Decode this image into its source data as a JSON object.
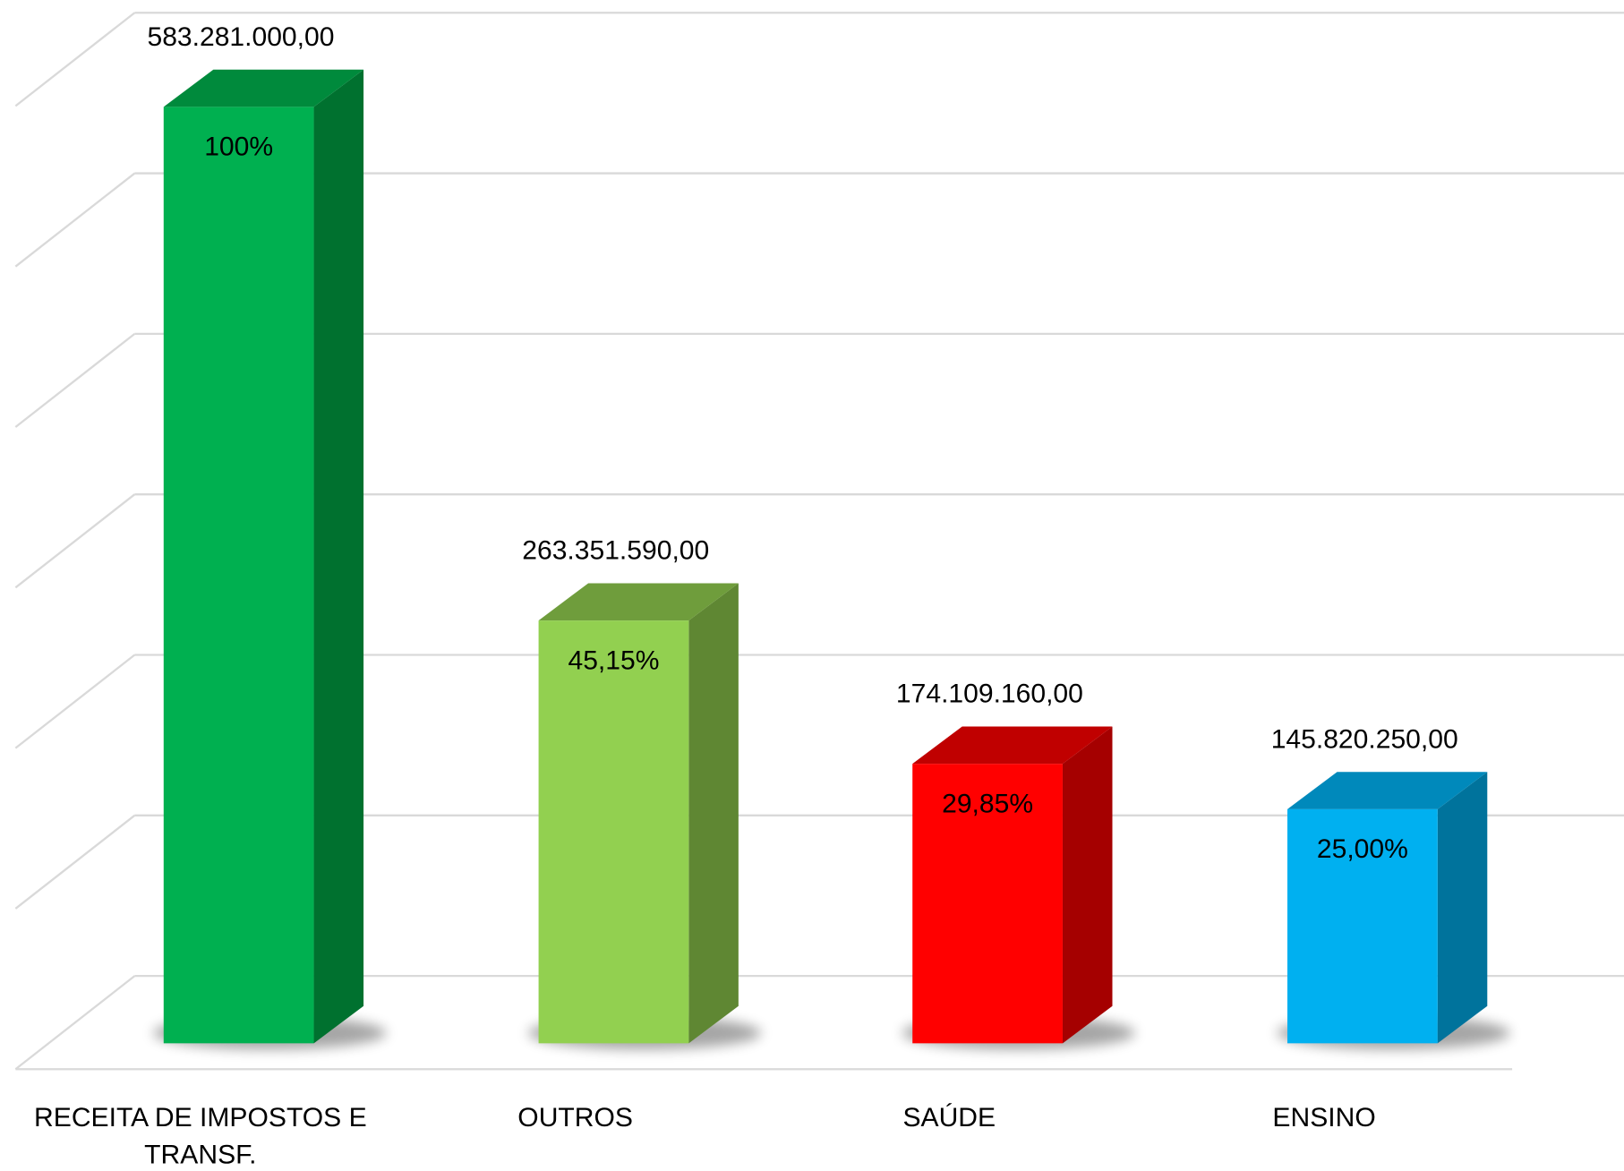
{
  "chart_data": {
    "type": "bar3d",
    "categories": [
      "RECEITA DE IMPOSTOS E TRANSF.",
      "OUTROS",
      "SAÚDE",
      "ENSINO"
    ],
    "values": [
      583281000,
      263351590,
      174109160,
      145820250
    ],
    "value_labels": [
      "583.281.000,00",
      "263.351.590,00",
      "174.109.160,00",
      "145.820.250,00"
    ],
    "shares": [
      100,
      45.15,
      29.85,
      25
    ],
    "share_labels": [
      "100%",
      "45,15%",
      "29,85%",
      "25,00%"
    ],
    "colors": [
      "#00b050",
      "#92d050",
      "#ff0000",
      "#00b0f0"
    ],
    "side_colors": [
      "#00712f",
      "#5f8733",
      "#a50000",
      "#00739c"
    ],
    "top_colors": [
      "#008a3c",
      "#6f9d3c",
      "#c00000",
      "#0089bb"
    ],
    "ylim": [
      0,
      600000000
    ],
    "yticks": [
      0,
      100000000,
      200000000,
      300000000,
      400000000,
      500000000,
      600000000
    ],
    "grid": true
  }
}
